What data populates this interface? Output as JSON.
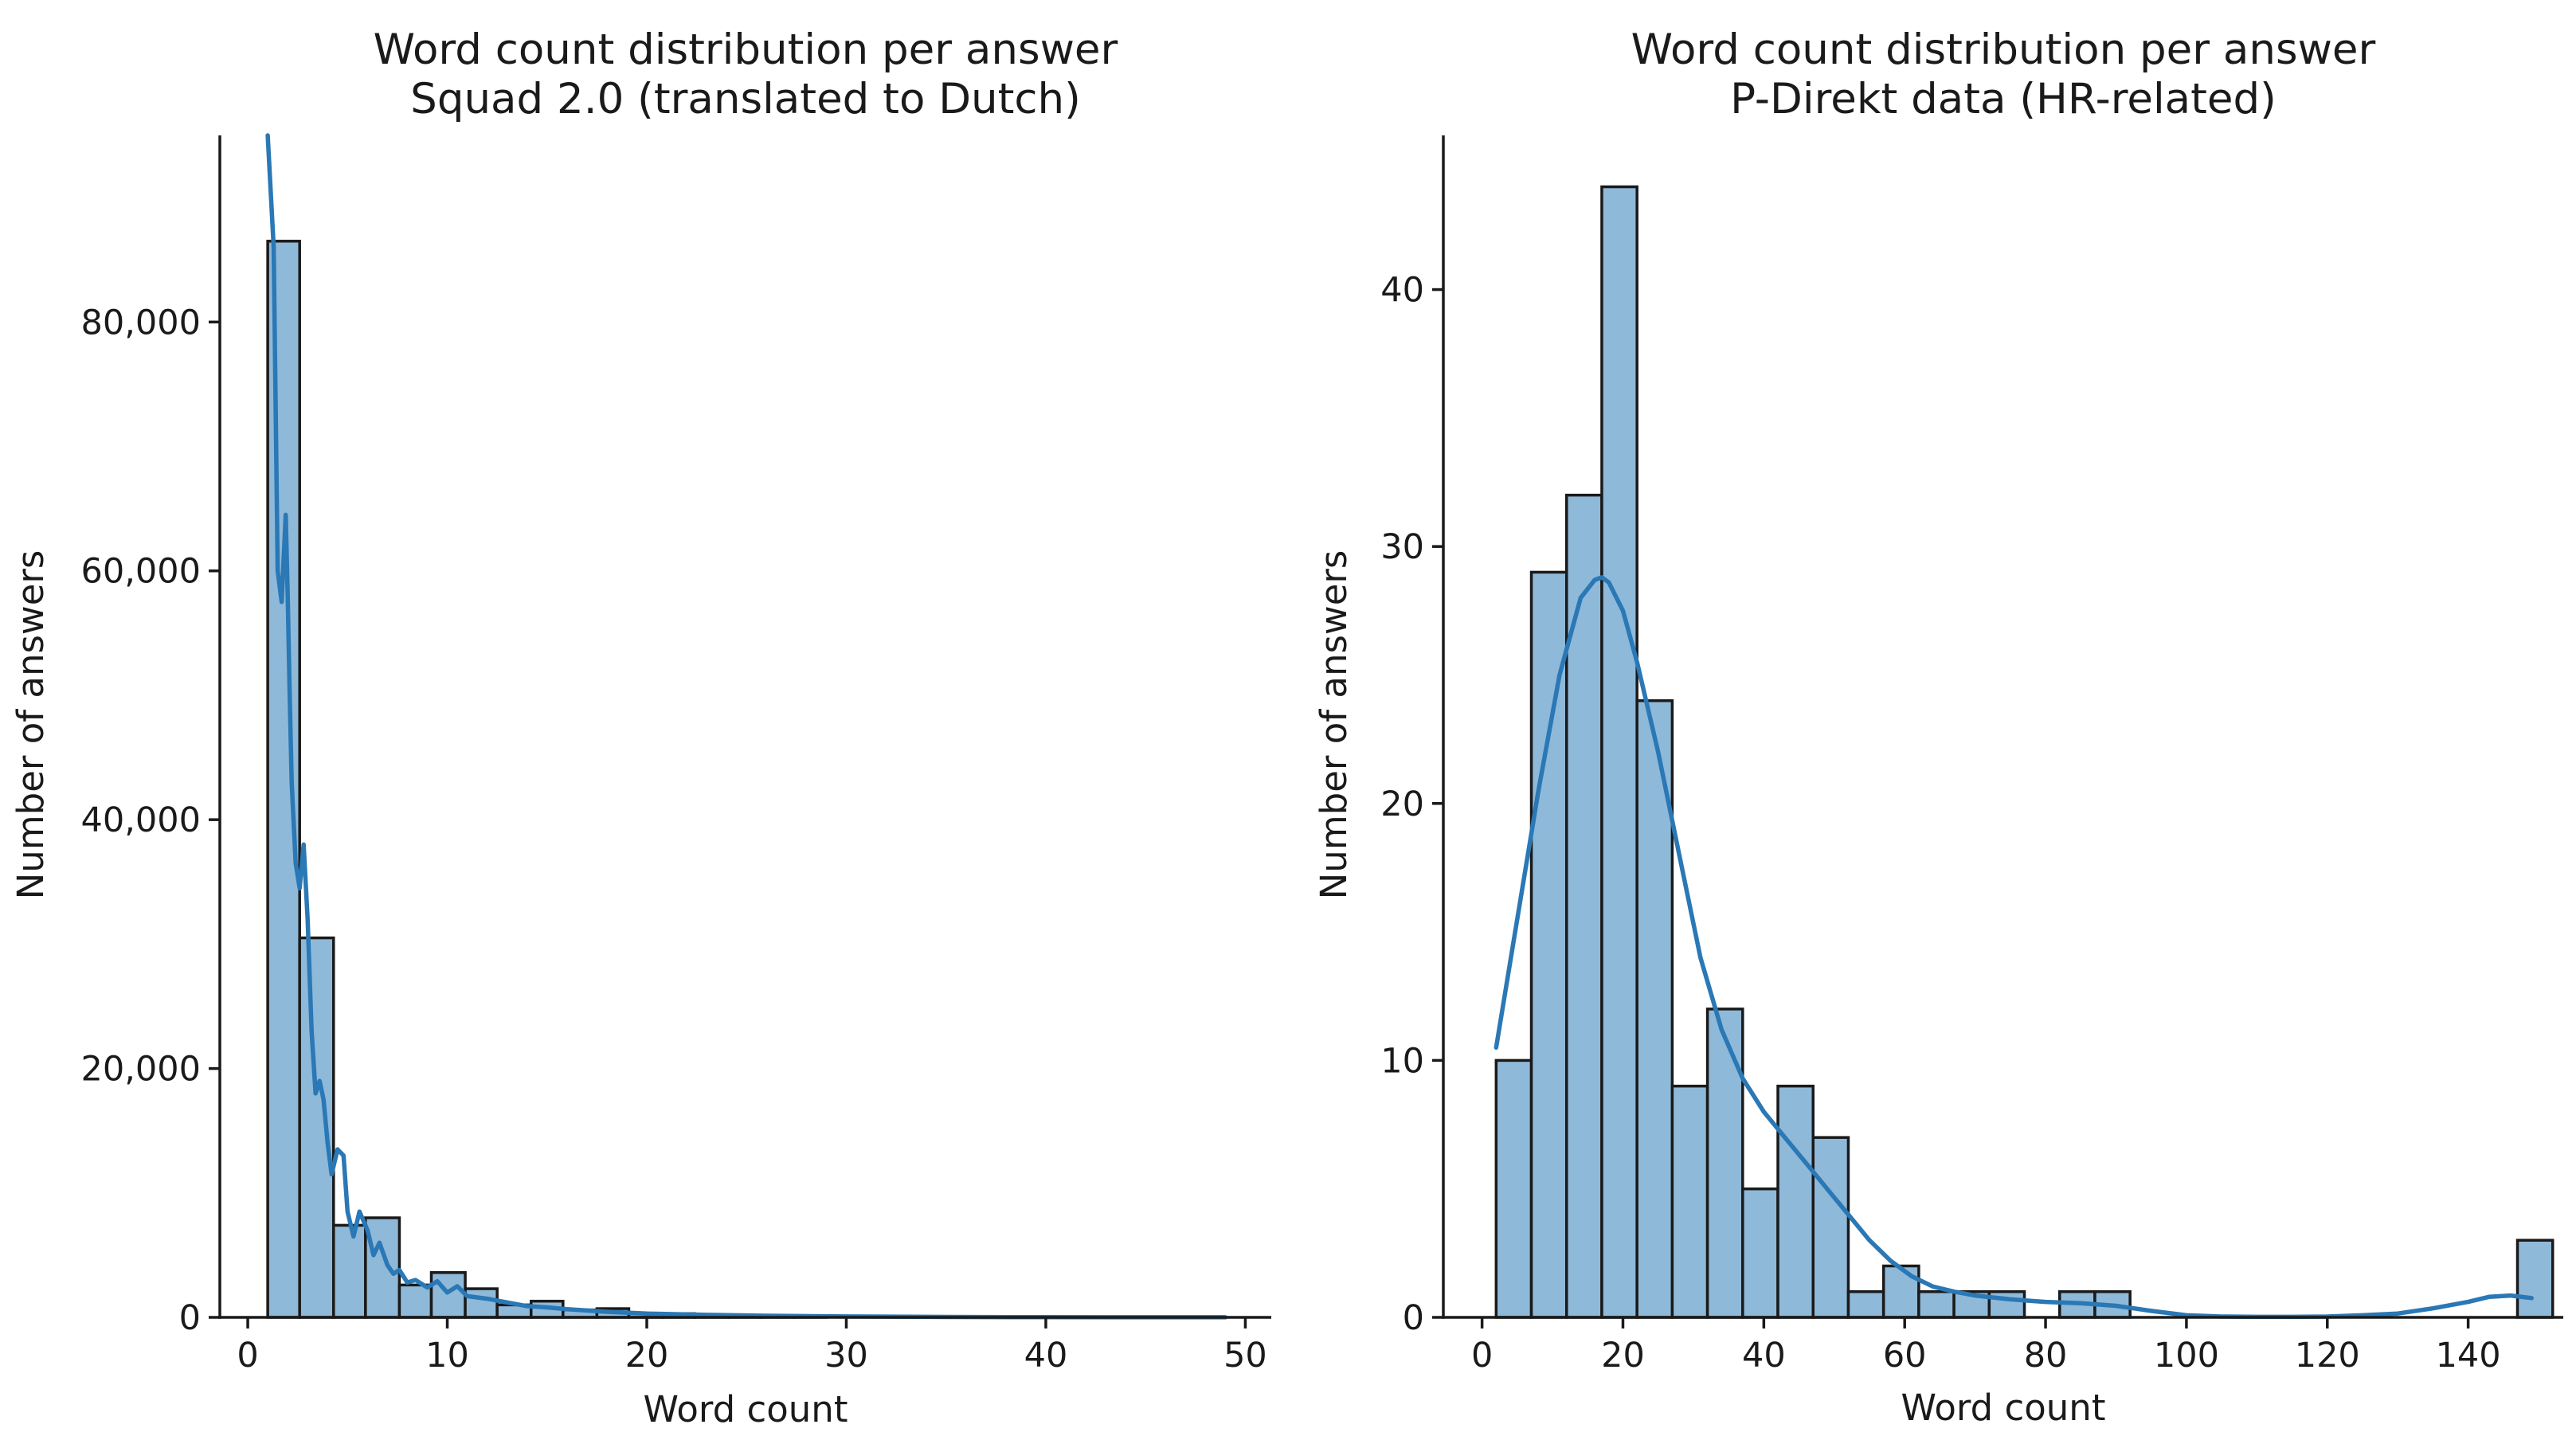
{
  "chart_data": [
    {
      "type": "bar",
      "subtype": "histogram with kde",
      "title": [
        "Word count distribution per answer",
        "Squad 2.0 (translated to Dutch)"
      ],
      "xlabel": "Word count",
      "ylabel": "Number of answers",
      "xlim": [
        -1.4,
        51.3
      ],
      "ylim": [
        0,
        95000
      ],
      "xticks": [
        0,
        10,
        20,
        30,
        40,
        50
      ],
      "yticks": [
        0,
        20000,
        40000,
        60000,
        80000
      ],
      "ytick_labels": [
        "0",
        "20,000",
        "40,000",
        "60,000",
        "80,000"
      ],
      "bar_color": "#8fb9d9",
      "line_color": "#2a78b5",
      "bins": [
        {
          "x0": 1.0,
          "x1": 2.6,
          "count": 86500
        },
        {
          "x0": 2.6,
          "x1": 4.3,
          "count": 30500
        },
        {
          "x0": 4.3,
          "x1": 5.9,
          "count": 7400
        },
        {
          "x0": 5.9,
          "x1": 7.6,
          "count": 8000
        },
        {
          "x0": 7.6,
          "x1": 9.2,
          "count": 2600
        },
        {
          "x0": 9.2,
          "x1": 10.9,
          "count": 3600
        },
        {
          "x0": 10.9,
          "x1": 12.5,
          "count": 2300
        },
        {
          "x0": 12.5,
          "x1": 14.2,
          "count": 1000
        },
        {
          "x0": 14.2,
          "x1": 15.8,
          "count": 1300
        },
        {
          "x0": 15.8,
          "x1": 17.5,
          "count": 600
        },
        {
          "x0": 17.5,
          "x1": 19.1,
          "count": 700
        },
        {
          "x0": 19.1,
          "x1": 20.8,
          "count": 300
        },
        {
          "x0": 20.8,
          "x1": 22.4,
          "count": 300
        },
        {
          "x0": 22.4,
          "x1": 24.1,
          "count": 150
        },
        {
          "x0": 24.1,
          "x1": 25.7,
          "count": 150
        },
        {
          "x0": 25.7,
          "x1": 27.4,
          "count": 80
        },
        {
          "x0": 27.4,
          "x1": 29.0,
          "count": 60
        }
      ],
      "kde": {
        "x": [
          1.0,
          1.3,
          1.5,
          1.7,
          1.9,
          2.0,
          2.1,
          2.2,
          2.4,
          2.6,
          2.8,
          3.0,
          3.2,
          3.4,
          3.6,
          3.8,
          4.0,
          4.2,
          4.5,
          4.8,
          5.0,
          5.3,
          5.6,
          6.0,
          6.3,
          6.6,
          7.0,
          7.3,
          7.6,
          8.0,
          8.4,
          9.0,
          9.5,
          10.0,
          10.5,
          11.0,
          12.0,
          13.0,
          14.0,
          15.0,
          16.0,
          18.0,
          20.0,
          23.0,
          26.0,
          30.0,
          35.0,
          40.0,
          45.0,
          49.0
        ],
        "y": [
          95000,
          86000,
          60000,
          57500,
          64500,
          58000,
          50000,
          43000,
          36500,
          34500,
          38000,
          32000,
          23000,
          18000,
          19000,
          17500,
          14000,
          11500,
          13500,
          13000,
          8500,
          6500,
          8500,
          7000,
          5000,
          6000,
          4200,
          3500,
          3800,
          2800,
          3000,
          2400,
          2900,
          2000,
          2500,
          1700,
          1500,
          1200,
          900,
          800,
          650,
          450,
          300,
          200,
          130,
          70,
          30,
          15,
          8,
          5
        ]
      }
    },
    {
      "type": "bar",
      "subtype": "histogram with kde",
      "title": [
        "Word count distribution per answer",
        "P-Direkt data (HR-related)"
      ],
      "xlabel": "Word count",
      "ylabel": "Number of answers",
      "xlim": [
        -5.5,
        153.5
      ],
      "ylim": [
        0,
        46
      ],
      "xticks": [
        0,
        20,
        40,
        60,
        80,
        100,
        120,
        140
      ],
      "yticks": [
        0,
        10,
        20,
        30,
        40
      ],
      "ytick_labels": [
        "0",
        "10",
        "20",
        "30",
        "40"
      ],
      "bar_color": "#8fb9d9",
      "line_color": "#2a78b5",
      "bins": [
        {
          "x0": 2,
          "x1": 7,
          "count": 10
        },
        {
          "x0": 7,
          "x1": 12,
          "count": 29
        },
        {
          "x0": 12,
          "x1": 17,
          "count": 32
        },
        {
          "x0": 17,
          "x1": 22,
          "count": 44
        },
        {
          "x0": 22,
          "x1": 27,
          "count": 24
        },
        {
          "x0": 27,
          "x1": 32,
          "count": 9
        },
        {
          "x0": 32,
          "x1": 37,
          "count": 12
        },
        {
          "x0": 37,
          "x1": 42,
          "count": 5
        },
        {
          "x0": 42,
          "x1": 47,
          "count": 9
        },
        {
          "x0": 47,
          "x1": 52,
          "count": 7
        },
        {
          "x0": 52,
          "x1": 57,
          "count": 1
        },
        {
          "x0": 57,
          "x1": 62,
          "count": 2
        },
        {
          "x0": 62,
          "x1": 67,
          "count": 1
        },
        {
          "x0": 67,
          "x1": 72,
          "count": 1
        },
        {
          "x0": 72,
          "x1": 77,
          "count": 1
        },
        {
          "x0": 77,
          "x1": 82,
          "count": 0
        },
        {
          "x0": 82,
          "x1": 87,
          "count": 1
        },
        {
          "x0": 87,
          "x1": 92,
          "count": 1
        },
        {
          "x0": 92,
          "x1": 97,
          "count": 0
        },
        {
          "x0": 97,
          "x1": 102,
          "count": 0
        },
        {
          "x0": 102,
          "x1": 107,
          "count": 0
        },
        {
          "x0": 107,
          "x1": 112,
          "count": 0
        },
        {
          "x0": 112,
          "x1": 117,
          "count": 0
        },
        {
          "x0": 117,
          "x1": 122,
          "count": 0
        },
        {
          "x0": 122,
          "x1": 127,
          "count": 0
        },
        {
          "x0": 127,
          "x1": 132,
          "count": 0
        },
        {
          "x0": 132,
          "x1": 137,
          "count": 0
        },
        {
          "x0": 137,
          "x1": 142,
          "count": 0
        },
        {
          "x0": 142,
          "x1": 147,
          "count": 0
        },
        {
          "x0": 147,
          "x1": 152,
          "count": 3
        }
      ],
      "kde": {
        "x": [
          2,
          5,
          8,
          11,
          14,
          16,
          17,
          18,
          20,
          22,
          25,
          28,
          31,
          34,
          37,
          40,
          43,
          46,
          49,
          52,
          55,
          58,
          61,
          64,
          67,
          70,
          75,
          80,
          85,
          90,
          95,
          100,
          105,
          110,
          115,
          120,
          125,
          130,
          135,
          140,
          143,
          146,
          149
        ],
        "y": [
          10.5,
          15.5,
          20.5,
          25,
          28,
          28.7,
          28.8,
          28.6,
          27.5,
          25.5,
          22,
          18,
          14,
          11.2,
          9.3,
          8,
          7,
          6,
          5,
          4,
          3,
          2.2,
          1.6,
          1.2,
          1.0,
          0.85,
          0.7,
          0.6,
          0.55,
          0.45,
          0.25,
          0.08,
          0.03,
          0.02,
          0.02,
          0.03,
          0.08,
          0.15,
          0.35,
          0.6,
          0.8,
          0.85,
          0.75
        ]
      }
    }
  ]
}
